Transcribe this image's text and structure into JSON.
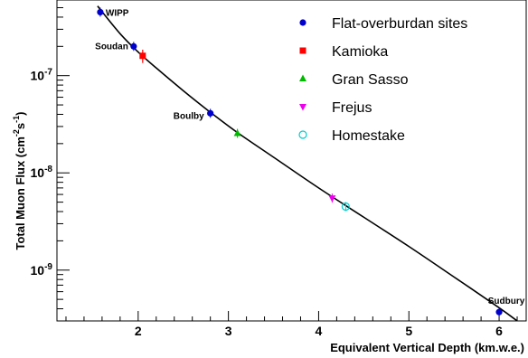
{
  "chart_data": {
    "type": "scatter",
    "xlabel": "Equivalent Vertical Depth (km.w.e.)",
    "ylabel_main": "Total Muon Flux (cm",
    "ylabel_exp1": "-2",
    "ylabel_mid": "s",
    "ylabel_exp2": "-1",
    "ylabel_end": ")",
    "x_range": [
      1.1,
      6.3
    ],
    "y_range": [
      3e-10,
      6e-07
    ],
    "y_scale": "log",
    "grid": false,
    "legend_position": "top-right",
    "x_ticks": [
      {
        "value": 2,
        "label": "2"
      },
      {
        "value": 3,
        "label": "3"
      },
      {
        "value": 4,
        "label": "4"
      },
      {
        "value": 5,
        "label": "5"
      },
      {
        "value": 6,
        "label": "6"
      }
    ],
    "y_ticks": [
      {
        "value": 1e-09,
        "base": "10",
        "exp": "-9"
      },
      {
        "value": 1e-08,
        "base": "10",
        "exp": "-8"
      },
      {
        "value": 1e-07,
        "base": "10",
        "exp": "-7"
      }
    ],
    "series": [
      {
        "name": "Flat-overburdan sites",
        "marker": "circle",
        "color": "#0000cc",
        "points": [
          {
            "x": 1.58,
            "y": 4.5e-07,
            "label": "WIPP"
          },
          {
            "x": 1.95,
            "y": 2e-07,
            "label": "Soudan"
          },
          {
            "x": 2.8,
            "y": 4.1e-08,
            "label": "Boulby"
          },
          {
            "x": 6.0,
            "y": 3.7e-10,
            "label": "Sudbury"
          }
        ]
      },
      {
        "name": "Kamioka",
        "marker": "square",
        "color": "#ff0000",
        "points": [
          {
            "x": 2.05,
            "y": 1.6e-07,
            "err": [
              1.35e-07,
              1.85e-07
            ]
          }
        ]
      },
      {
        "name": "Gran Sasso",
        "marker": "triangle",
        "color": "#00bb00",
        "points": [
          {
            "x": 3.1,
            "y": 2.55e-08
          }
        ]
      },
      {
        "name": "Frejus",
        "marker": "triangle-down",
        "color": "#ee00ee",
        "points": [
          {
            "x": 4.15,
            "y": 5.5e-09
          }
        ]
      },
      {
        "name": "Homestake",
        "marker": "open-circle",
        "color": "#00cccc",
        "points": [
          {
            "x": 4.3,
            "y": 4.5e-09
          }
        ]
      }
    ],
    "fit_curve": [
      [
        1.55,
        5.2e-07
      ],
      [
        1.8,
        2.7e-07
      ],
      [
        2.0,
        1.75e-07
      ],
      [
        2.2,
        1.2e-07
      ],
      [
        2.5,
        7e-08
      ],
      [
        2.8,
        4.2e-08
      ],
      [
        3.1,
        2.6e-08
      ],
      [
        3.5,
        1.45e-08
      ],
      [
        4.0,
        7e-09
      ],
      [
        4.5,
        3.5e-09
      ],
      [
        5.0,
        1.75e-09
      ],
      [
        5.5,
        8.5e-10
      ],
      [
        6.0,
        4.1e-10
      ],
      [
        6.2,
        3e-10
      ]
    ]
  }
}
